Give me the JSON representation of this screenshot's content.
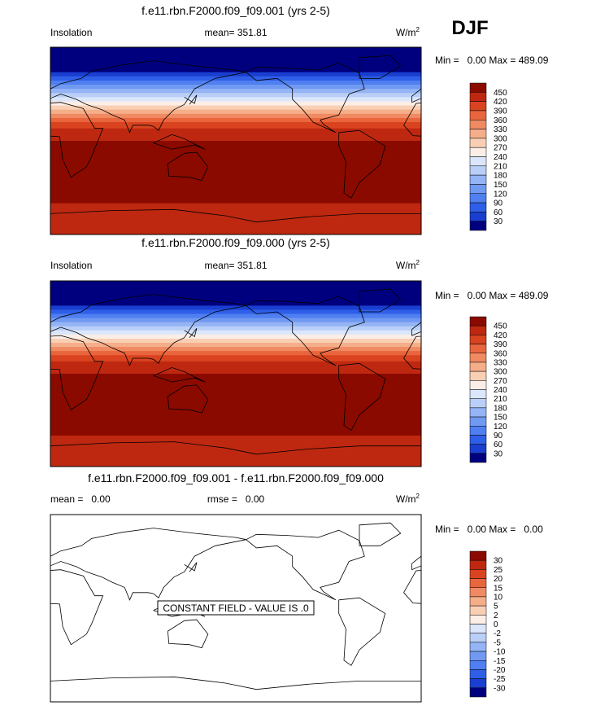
{
  "season": "DJF",
  "panels": [
    {
      "title": "f.e11.rbn.F2000.f09_f09.001 (yrs 2-5)",
      "left_label": "Insolation",
      "center_label": "mean= 351.81",
      "units": "W/m",
      "units_sup": "2",
      "minmax": "Min =   0.00 Max = 489.09",
      "colorbar": {
        "labels": [
          "450",
          "420",
          "390",
          "360",
          "330",
          "300",
          "270",
          "240",
          "210",
          "180",
          "150",
          "120",
          "90",
          "60",
          "30"
        ],
        "colors": [
          "#8b0a00",
          "#bf2810",
          "#d9431f",
          "#e9653d",
          "#f08a62",
          "#f5ae8a",
          "#f9cfb4",
          "#fbeee6",
          "#dbe6fb",
          "#b9cff8",
          "#95b4f5",
          "#7099f2",
          "#4f7ff0",
          "#2f5fe8",
          "#1a3fd0",
          "#00007f"
        ]
      }
    },
    {
      "title": "f.e11.rbn.F2000.f09_f09.000 (yrs 2-5)",
      "left_label": "Insolation",
      "center_label": "mean= 351.81",
      "units": "W/m",
      "units_sup": "2",
      "minmax": "Min =   0.00 Max = 489.09",
      "colorbar": {
        "labels": [
          "450",
          "420",
          "390",
          "360",
          "330",
          "300",
          "270",
          "240",
          "210",
          "180",
          "150",
          "120",
          "90",
          "60",
          "30"
        ],
        "colors": [
          "#8b0a00",
          "#bf2810",
          "#d9431f",
          "#e9653d",
          "#f08a62",
          "#f5ae8a",
          "#f9cfb4",
          "#fbeee6",
          "#dbe6fb",
          "#b9cff8",
          "#95b4f5",
          "#7099f2",
          "#4f7ff0",
          "#2f5fe8",
          "#1a3fd0",
          "#00007f"
        ]
      }
    },
    {
      "title": "f.e11.rbn.F2000.f09_f09.001 - f.e11.rbn.F2000.f09_f09.000",
      "left_label": "mean =   0.00",
      "center_label": "rmse =   0.00",
      "units": "W/m",
      "units_sup": "2",
      "minmax": "Min =   0.00 Max =   0.00",
      "annotation": "CONSTANT FIELD - VALUE IS .0",
      "colorbar": {
        "labels": [
          "30",
          "25",
          "20",
          "15",
          "10",
          "5",
          "2",
          "0",
          "-2",
          "-5",
          "-10",
          "-15",
          "-20",
          "-25",
          "-30"
        ],
        "colors": [
          "#8b0a00",
          "#bf2810",
          "#d9431f",
          "#e9653d",
          "#f08a62",
          "#f5ae8a",
          "#f9cfb4",
          "#fbeee6",
          "#dbe6fb",
          "#b9cff8",
          "#95b4f5",
          "#7099f2",
          "#4f7ff0",
          "#2f5fe8",
          "#1a3fd0",
          "#00007f"
        ]
      }
    }
  ]
}
